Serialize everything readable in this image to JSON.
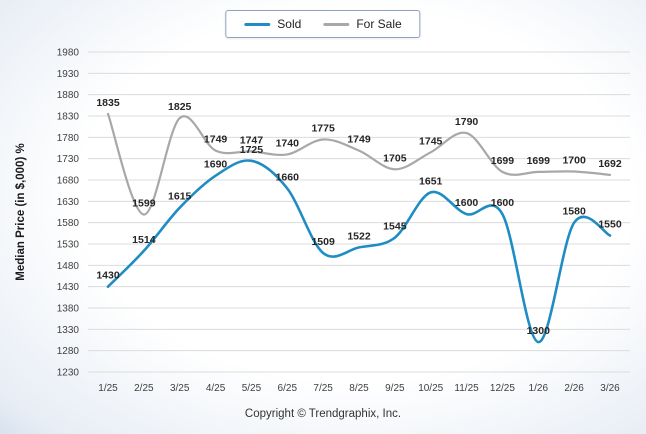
{
  "footer": {
    "copyright": "Copyright © Trendgraphix, Inc."
  },
  "chart_data": {
    "type": "line",
    "title": "",
    "xlabel": "",
    "ylabel": "Median Price (in $,000) %",
    "categories": [
      "1/25",
      "2/25",
      "3/25",
      "4/25",
      "5/25",
      "6/25",
      "7/25",
      "8/25",
      "9/25",
      "10/25",
      "11/25",
      "12/25",
      "1/26",
      "2/26",
      "3/26"
    ],
    "series": [
      {
        "name": "For Sale",
        "color": "#a8a8a8",
        "values": [
          1835,
          1599,
          1825,
          1749,
          1747,
          1740,
          1775,
          1749,
          1705,
          1745,
          1790,
          1699,
          1699,
          1700,
          1692
        ]
      },
      {
        "name": "Sold",
        "color": "#1f8dc4",
        "values": [
          1430,
          1514,
          1615,
          1690,
          1725,
          1660,
          1509,
          1522,
          1545,
          1651,
          1600,
          1600,
          1300,
          1580,
          1550
        ]
      }
    ],
    "legend_order": [
      "Sold",
      "For Sale"
    ],
    "ylim": [
      1230,
      1980
    ],
    "ytick_step": 50,
    "grid": true,
    "legend_position": "top",
    "data_labels": true,
    "gridline_color": "#dcdcdc"
  }
}
